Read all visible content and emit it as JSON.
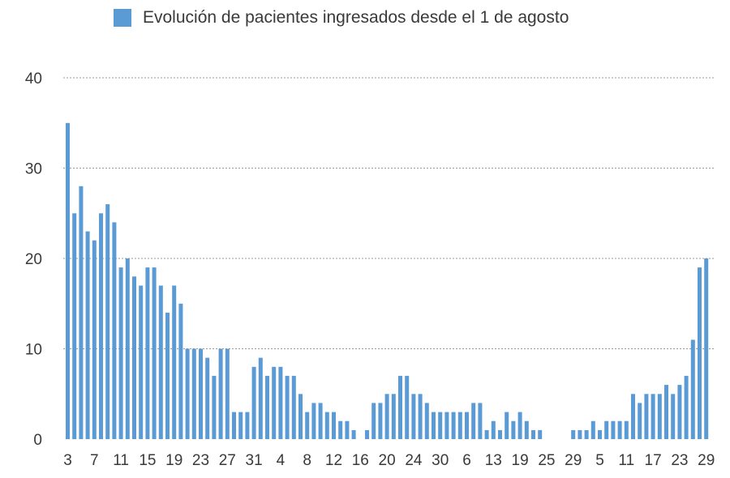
{
  "chart_data": {
    "type": "bar",
    "legend": {
      "position": "top",
      "label": "Evolución de pacientes ingresados desde el 1 de agosto"
    },
    "series": [
      {
        "name": "Evolución de pacientes ingresados desde el 1 de agosto",
        "color": "#5b9bd5",
        "values": [
          35,
          25,
          28,
          23,
          22,
          25,
          26,
          24,
          19,
          20,
          18,
          17,
          19,
          19,
          17,
          14,
          17,
          15,
          10,
          10,
          10,
          9,
          7,
          10,
          10,
          3,
          3,
          3,
          8,
          9,
          7,
          8,
          8,
          7,
          7,
          5,
          3,
          4,
          4,
          3,
          3,
          2,
          2,
          1,
          0,
          1,
          4,
          4,
          5,
          5,
          7,
          7,
          5,
          5,
          4,
          3,
          3,
          3,
          3,
          3,
          3,
          4,
          4,
          1,
          2,
          1,
          3,
          2,
          3,
          2,
          1,
          1,
          0,
          0,
          0,
          0,
          1,
          1,
          1,
          2,
          1,
          2,
          2,
          2,
          2,
          5,
          4,
          5,
          5,
          5,
          6,
          5,
          6,
          7,
          11,
          19,
          20
        ]
      }
    ],
    "ylim": [
      0,
      40
    ],
    "y_ticks": [
      "0",
      "10",
      "20",
      "30",
      "40"
    ],
    "x_tick_labels": [
      "3",
      "7",
      "11",
      "15",
      "19",
      "23",
      "27",
      "31",
      "4",
      "8",
      "12",
      "16",
      "20",
      "24",
      "30",
      "6",
      "13",
      "19",
      "25",
      "29",
      "5",
      "11",
      "17",
      "23",
      "29"
    ],
    "grid": "horizontal dotted",
    "xlabel": "",
    "ylabel": ""
  }
}
